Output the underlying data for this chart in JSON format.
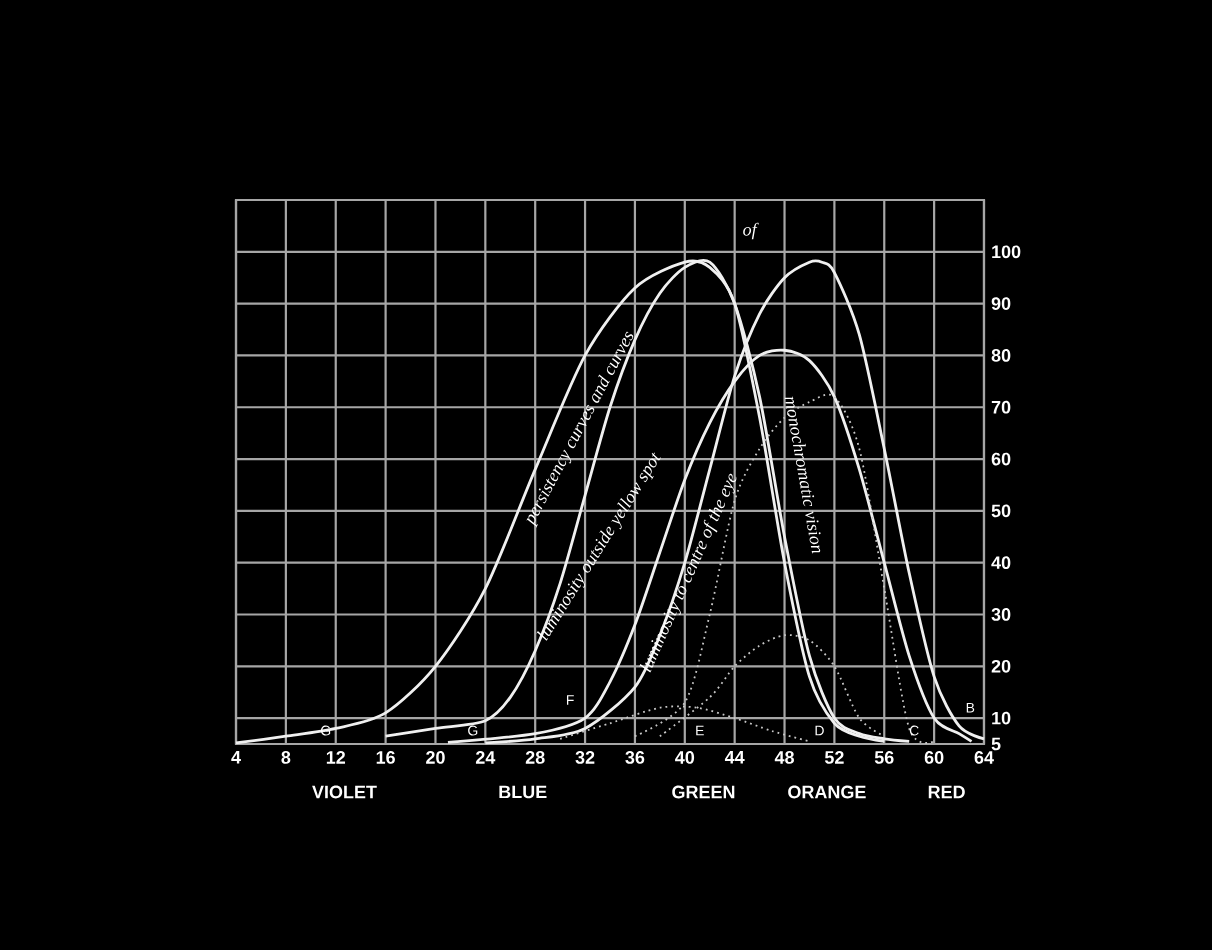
{
  "chart_data": {
    "type": "line",
    "xlim": [
      4,
      64
    ],
    "ylim": [
      5,
      110
    ],
    "xticks": [
      4,
      8,
      12,
      16,
      20,
      24,
      28,
      32,
      36,
      40,
      44,
      48,
      52,
      56,
      60,
      64
    ],
    "yticks": [
      5,
      10,
      20,
      30,
      40,
      50,
      60,
      70,
      80,
      90,
      100,
      {
        "value": 110,
        "label": null
      }
    ],
    "grid": true,
    "marker": "none",
    "series": [
      {
        "color": "#f0f0f0",
        "line_style": "solid",
        "x": [
          4,
          8,
          12,
          16,
          20,
          24,
          28,
          32,
          36,
          40,
          42,
          44,
          46,
          48,
          50,
          52,
          54,
          56
        ],
        "values": [
          5.2,
          6.5,
          8,
          11,
          20,
          35,
          58,
          80,
          93,
          98,
          97,
          90,
          68,
          40,
          18,
          9,
          6.5,
          5.5
        ]
      },
      {
        "color": "#f0f0f0",
        "line_style": "solid",
        "x": [
          16,
          20,
          24,
          26,
          28,
          30,
          32,
          34,
          36,
          38,
          40,
          42,
          44,
          46,
          48,
          50,
          52,
          54,
          56,
          58
        ],
        "values": [
          6.5,
          8,
          9.5,
          14,
          23,
          36,
          53,
          70,
          83,
          92,
          97,
          98,
          90,
          72,
          45,
          22,
          10,
          7,
          6,
          5.5
        ]
      },
      {
        "color": "#f0f0f0",
        "line_style": "solid",
        "x": [
          21,
          28,
          32,
          34,
          36,
          38,
          40,
          42,
          44,
          46,
          48,
          50,
          52,
          54,
          56,
          58,
          60,
          62,
          63
        ],
        "values": [
          5.3,
          7,
          10,
          17,
          28,
          42,
          56,
          67,
          75,
          80,
          81,
          79,
          72,
          58,
          40,
          22,
          10,
          7,
          5.5
        ]
      },
      {
        "color": "#f0f0f0",
        "line_style": "solid",
        "x": [
          24,
          28,
          32,
          36,
          38,
          40,
          42,
          44,
          46,
          48,
          50,
          51,
          52,
          54,
          56,
          58,
          60,
          62,
          64
        ],
        "values": [
          5.2,
          6,
          8,
          16,
          26,
          40,
          58,
          76,
          88,
          95,
          98,
          98,
          96,
          84,
          62,
          38,
          18,
          8.5,
          6
        ]
      },
      {
        "color": "#c8c8c8",
        "line_style": "dotted",
        "x": [
          36,
          40,
          42,
          44,
          46,
          48,
          50,
          52,
          54,
          56,
          58,
          60
        ],
        "values": [
          6.5,
          13,
          30,
          52,
          62,
          68,
          71,
          72,
          62,
          35,
          8,
          5.5
        ]
      },
      {
        "color": "#c8c8c8",
        "line_style": "dotted",
        "x": [
          38,
          42,
          44,
          46,
          48,
          50,
          52,
          54,
          56
        ],
        "values": [
          6.5,
          14,
          20,
          24,
          26,
          25,
          20,
          10,
          6.5
        ]
      },
      {
        "color": "#c8c8c8",
        "line_style": "dotted",
        "x": [
          30,
          34,
          38,
          41,
          44,
          47,
          50
        ],
        "values": [
          6,
          9,
          12,
          12,
          10,
          7.5,
          5.5
        ]
      }
    ],
    "annotations": [
      "persistency curves and curves",
      "of",
      "monochromatic vision",
      "luminosity outside yellow spot",
      "luminosity to centre of the eye",
      "G",
      "G",
      "F",
      "E",
      "D",
      "C",
      "B",
      "VIOLET",
      "BLUE",
      "GREEN",
      "ORANGE",
      "RED"
    ]
  }
}
